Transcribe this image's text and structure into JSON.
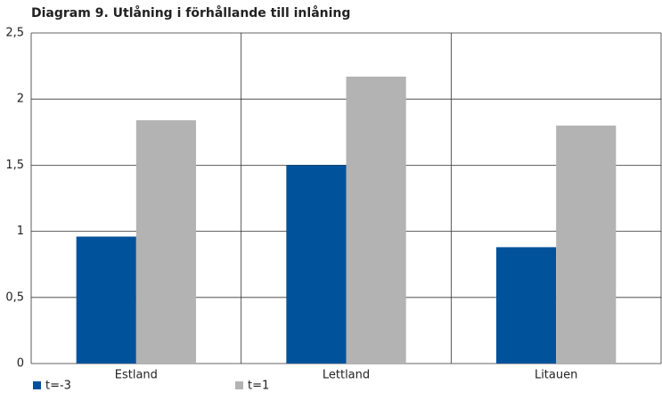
{
  "chart_data": {
    "type": "bar",
    "title": "Diagram 9. Utlåning i förhållande till inlåning",
    "categories": [
      "Estland",
      "Lettland",
      "Litauen"
    ],
    "series": [
      {
        "name": "t=-3",
        "color": "#00529b",
        "values": [
          0.96,
          1.5,
          0.88
        ]
      },
      {
        "name": "t=1",
        "color": "#b3b3b3",
        "values": [
          1.84,
          2.17,
          1.8
        ]
      }
    ],
    "ylim": [
      0,
      2.5
    ],
    "yticks": [
      0,
      {
        "value": 0.5,
        "label": "0,5"
      },
      1,
      {
        "value": 1.5,
        "label": "1,5"
      },
      2,
      {
        "value": 2.5,
        "label": "2,5"
      }
    ],
    "grid": true
  }
}
